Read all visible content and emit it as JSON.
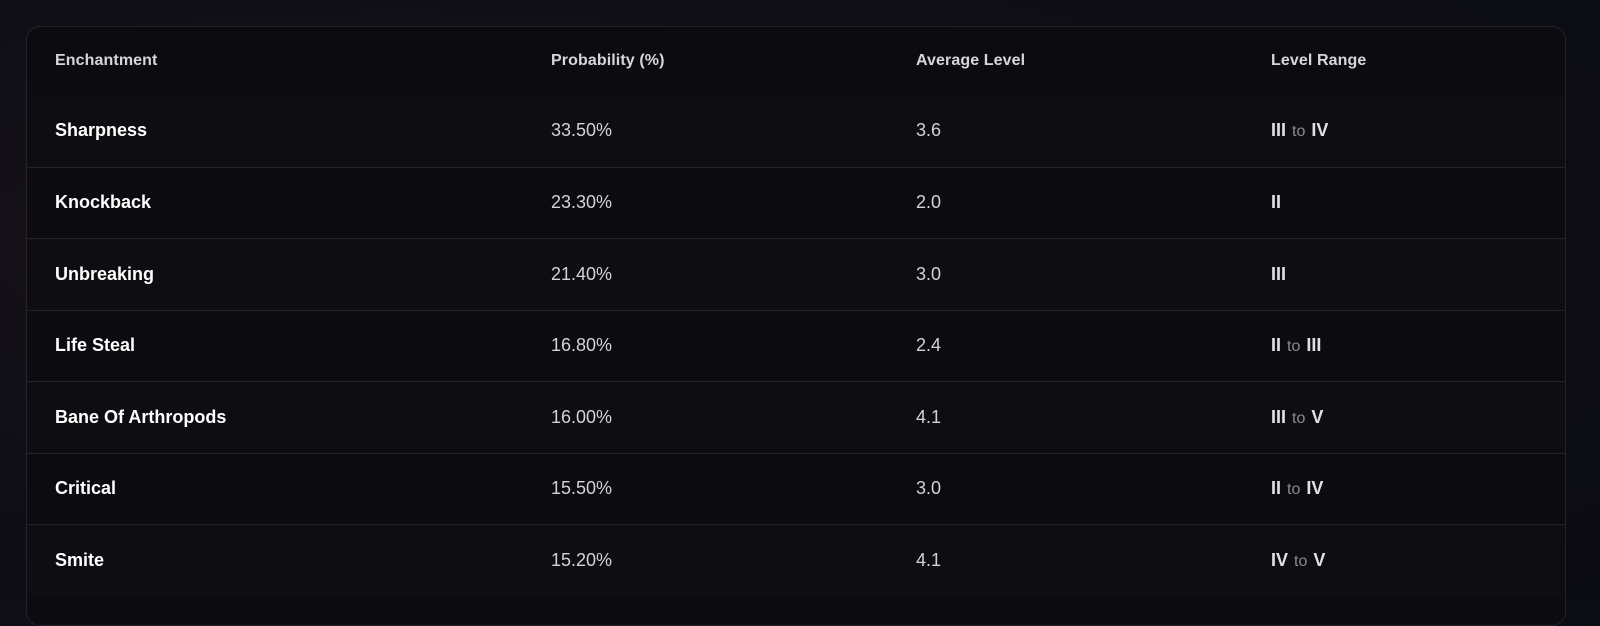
{
  "table": {
    "headers": {
      "enchantment": "Enchantment",
      "probability": "Probability (%)",
      "average_level": "Average Level",
      "level_range": "Level Range"
    },
    "rows": [
      {
        "name": "Sharpness",
        "probability": "33.50%",
        "average": "3.6",
        "range_from": "III",
        "range_sep": "to",
        "range_to": "IV"
      },
      {
        "name": "Knockback",
        "probability": "23.30%",
        "average": "2.0",
        "range_from": "II",
        "range_sep": "",
        "range_to": ""
      },
      {
        "name": "Unbreaking",
        "probability": "21.40%",
        "average": "3.0",
        "range_from": "III",
        "range_sep": "",
        "range_to": ""
      },
      {
        "name": "Life Steal",
        "probability": "16.80%",
        "average": "2.4",
        "range_from": "II",
        "range_sep": "to",
        "range_to": "III"
      },
      {
        "name": "Bane Of Arthropods",
        "probability": "16.00%",
        "average": "4.1",
        "range_from": "III",
        "range_sep": "to",
        "range_to": "V"
      },
      {
        "name": "Critical",
        "probability": "15.50%",
        "average": "3.0",
        "range_from": "II",
        "range_sep": "to",
        "range_to": "IV"
      },
      {
        "name": "Smite",
        "probability": "15.20%",
        "average": "4.1",
        "range_from": "IV",
        "range_sep": "to",
        "range_to": "V"
      }
    ]
  },
  "colors": {
    "background": "#0d0c14",
    "table_background": "#0c0b10",
    "divider": "#25242b",
    "text_primary": "#ffffff",
    "text_muted": "#8b8a94"
  }
}
